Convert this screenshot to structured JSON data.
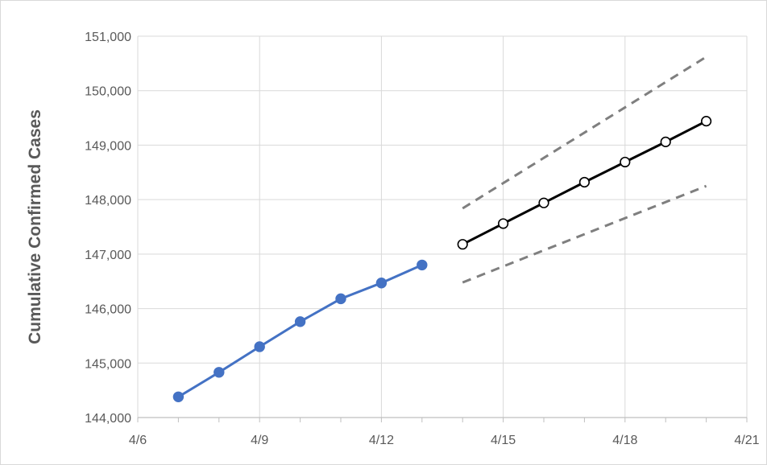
{
  "chart_data": {
    "type": "line",
    "title": "",
    "xlabel": "",
    "ylabel": "Cumulative Confirmed Cases",
    "x_ticks": [
      "4/6",
      "4/9",
      "4/12",
      "4/15",
      "4/18",
      "4/21"
    ],
    "y_ticks": [
      "144,000",
      "145,000",
      "146,000",
      "147,000",
      "148,000",
      "149,000",
      "150,000",
      "151,000"
    ],
    "xlim": [
      "4/6",
      "4/21"
    ],
    "ylim": [
      144000,
      151000
    ],
    "grid": true,
    "legend": "none",
    "series": [
      {
        "style": "solid-filled-markers",
        "color": "#4472C4",
        "points": [
          {
            "x": "4/7",
            "y": 144380
          },
          {
            "x": "4/8",
            "y": 144830
          },
          {
            "x": "4/9",
            "y": 145300
          },
          {
            "x": "4/10",
            "y": 145760
          },
          {
            "x": "4/11",
            "y": 146180
          },
          {
            "x": "4/12",
            "y": 146470
          },
          {
            "x": "4/13",
            "y": 146800
          }
        ]
      },
      {
        "style": "solid-open-markers",
        "color": "#000000",
        "points": [
          {
            "x": "4/14",
            "y": 147180
          },
          {
            "x": "4/15",
            "y": 147560
          },
          {
            "x": "4/16",
            "y": 147940
          },
          {
            "x": "4/17",
            "y": 148320
          },
          {
            "x": "4/18",
            "y": 148690
          },
          {
            "x": "4/19",
            "y": 149060
          },
          {
            "x": "4/20",
            "y": 149440
          }
        ]
      },
      {
        "style": "dashed",
        "color": "#7F7F7F",
        "points": [
          {
            "x": "4/14",
            "y": 147840
          },
          {
            "x": "4/20",
            "y": 150620
          }
        ]
      },
      {
        "style": "dashed",
        "color": "#7F7F7F",
        "points": [
          {
            "x": "4/14",
            "y": 146480
          },
          {
            "x": "4/20",
            "y": 148250
          }
        ]
      }
    ]
  }
}
